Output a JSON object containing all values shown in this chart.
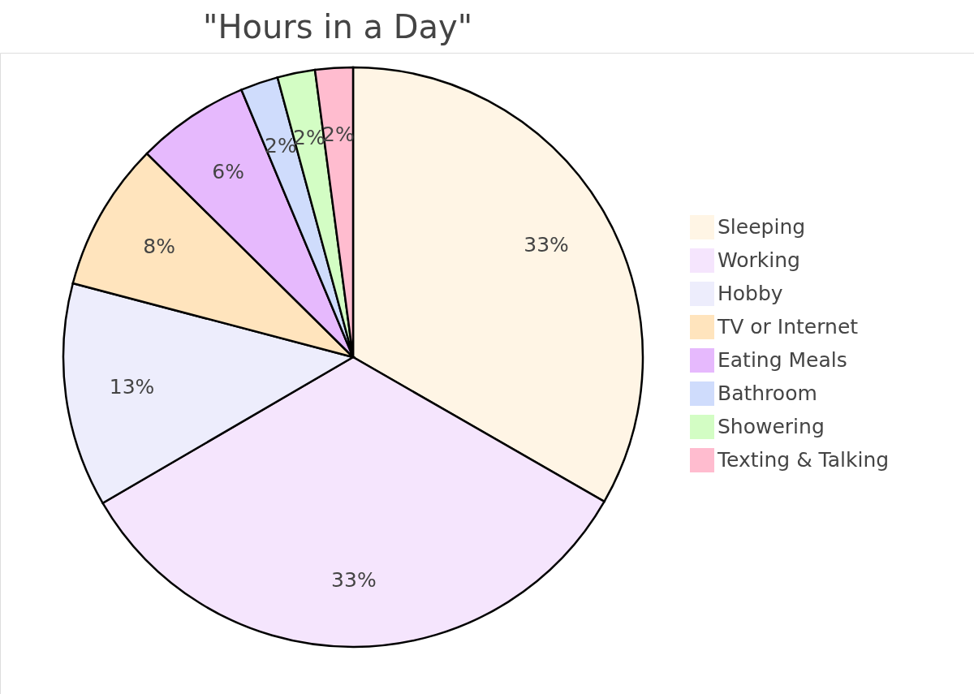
{
  "chart_data": {
    "type": "pie",
    "title": "\"Hours in a Day\"",
    "categories": [
      "Sleeping",
      "Working",
      "Hobby",
      "TV or Internet",
      "Eating Meals",
      "Bathroom",
      "Showering",
      "Texting & Talking"
    ],
    "values": [
      33.3,
      33.3,
      12.5,
      8.3,
      6.3,
      2.1,
      2.1,
      2.1
    ],
    "value_labels": [
      "33%",
      "33%",
      "13%",
      "8%",
      "6%",
      "2%",
      "2%",
      "2%"
    ],
    "colors": [
      "#fff5e5",
      "#f5e5fd",
      "#ededfc",
      "#ffe4bd",
      "#e6b9fd",
      "#cfdcfc",
      "#d3fdc4",
      "#ffbccf"
    ],
    "legend": "right"
  }
}
